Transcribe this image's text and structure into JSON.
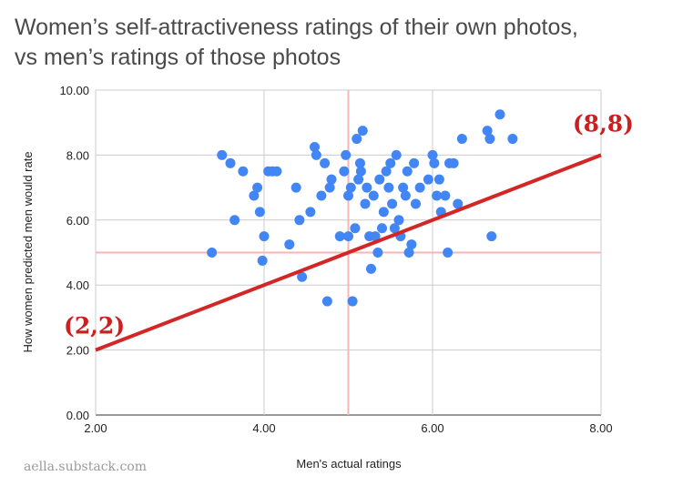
{
  "chart_data": {
    "type": "scatter",
    "title": "Women’s self-attractiveness ratings of their own photos,\nvs men’s ratings of those photos",
    "xlabel": "Men's actual ratings",
    "ylabel": "How women predicted men would rate",
    "xlim": [
      2,
      8
    ],
    "ylim": [
      0,
      10
    ],
    "x_ticks": [
      "2.00",
      "4.00",
      "6.00",
      "8.00"
    ],
    "y_ticks": [
      "0.00",
      "2.00",
      "4.00",
      "6.00",
      "8.00",
      "10.00"
    ],
    "grid": true,
    "colors": {
      "points": "#4285f4",
      "line": "#d32626",
      "reference": "#f4b6b6",
      "grid": "#cccccc"
    },
    "reference_lines": {
      "x": 5,
      "y": 5
    },
    "fit_line": {
      "from": [
        2,
        2
      ],
      "to": [
        8,
        8
      ]
    },
    "annotations": [
      {
        "text": "(2,2)",
        "x": 2,
        "y": 2,
        "placement": "above-left"
      },
      {
        "text": "(8,8)",
        "x": 8,
        "y": 8,
        "placement": "above-right"
      }
    ],
    "points": [
      [
        3.38,
        5.0
      ],
      [
        3.5,
        8.0
      ],
      [
        3.6,
        7.75
      ],
      [
        3.65,
        6.0
      ],
      [
        3.75,
        7.5
      ],
      [
        3.88,
        6.75
      ],
      [
        3.92,
        7.0
      ],
      [
        3.95,
        6.25
      ],
      [
        3.98,
        4.75
      ],
      [
        4.0,
        5.5
      ],
      [
        4.05,
        7.5
      ],
      [
        4.1,
        7.5
      ],
      [
        4.15,
        7.5
      ],
      [
        4.3,
        5.25
      ],
      [
        4.38,
        7.0
      ],
      [
        4.42,
        6.0
      ],
      [
        4.45,
        4.25
      ],
      [
        4.55,
        6.25
      ],
      [
        4.6,
        8.25
      ],
      [
        4.62,
        8.0
      ],
      [
        4.68,
        6.75
      ],
      [
        4.72,
        7.75
      ],
      [
        4.75,
        3.5
      ],
      [
        4.78,
        7.0
      ],
      [
        4.8,
        7.25
      ],
      [
        4.9,
        5.5
      ],
      [
        4.95,
        7.5
      ],
      [
        4.97,
        8.0
      ],
      [
        5.0,
        5.5
      ],
      [
        5.0,
        6.75
      ],
      [
        5.03,
        7.0
      ],
      [
        5.05,
        3.5
      ],
      [
        5.08,
        5.75
      ],
      [
        5.1,
        8.5
      ],
      [
        5.12,
        7.25
      ],
      [
        5.14,
        7.75
      ],
      [
        5.15,
        7.5
      ],
      [
        5.17,
        8.75
      ],
      [
        5.2,
        6.5
      ],
      [
        5.22,
        7.0
      ],
      [
        5.25,
        5.5
      ],
      [
        5.27,
        4.5
      ],
      [
        5.3,
        6.75
      ],
      [
        5.32,
        5.5
      ],
      [
        5.35,
        5.0
      ],
      [
        5.37,
        7.25
      ],
      [
        5.4,
        5.75
      ],
      [
        5.42,
        6.25
      ],
      [
        5.45,
        7.5
      ],
      [
        5.48,
        7.0
      ],
      [
        5.5,
        7.75
      ],
      [
        5.52,
        6.5
      ],
      [
        5.55,
        5.75
      ],
      [
        5.57,
        8.0
      ],
      [
        5.6,
        6.0
      ],
      [
        5.62,
        5.5
      ],
      [
        5.65,
        7.0
      ],
      [
        5.68,
        6.75
      ],
      [
        5.7,
        7.5
      ],
      [
        5.72,
        5.0
      ],
      [
        5.75,
        5.25
      ],
      [
        5.78,
        7.75
      ],
      [
        5.8,
        6.5
      ],
      [
        5.85,
        7.0
      ],
      [
        5.95,
        7.25
      ],
      [
        6.0,
        8.0
      ],
      [
        6.02,
        7.75
      ],
      [
        6.05,
        6.75
      ],
      [
        6.08,
        7.25
      ],
      [
        6.1,
        6.25
      ],
      [
        6.15,
        6.75
      ],
      [
        6.18,
        5.0
      ],
      [
        6.2,
        7.75
      ],
      [
        6.25,
        7.75
      ],
      [
        6.3,
        6.5
      ],
      [
        6.35,
        8.5
      ],
      [
        6.65,
        8.75
      ],
      [
        6.68,
        8.5
      ],
      [
        6.7,
        5.5
      ],
      [
        6.8,
        9.25
      ],
      [
        6.95,
        8.5
      ]
    ]
  },
  "watermark": "aella.substack.com"
}
